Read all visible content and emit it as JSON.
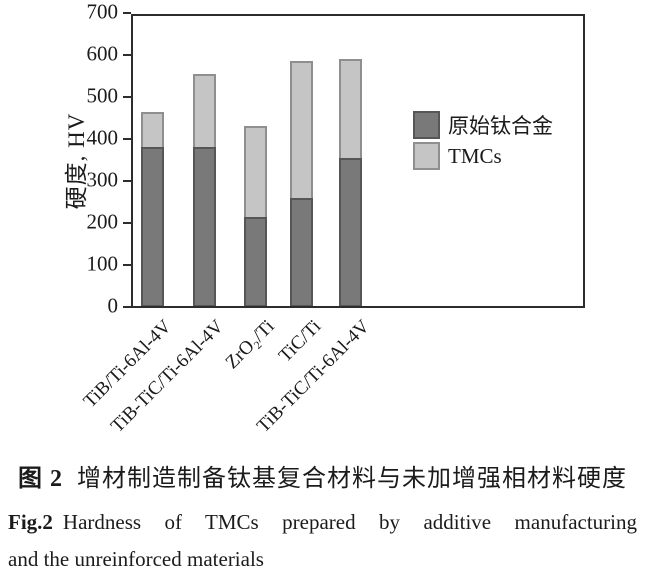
{
  "chart_data": {
    "type": "bar",
    "bar_mode": "overlay",
    "categories": [
      "TiB/Ti-6Al-4V",
      "TiB-TiC/Ti-6Al-4V",
      "ZrO₂/Ti",
      "TiC/Ti",
      "TiB-TiC/Ti-6Al-4V"
    ],
    "series": [
      {
        "name": "原始钛合金",
        "values": [
          380,
          380,
          215,
          260,
          355
        ],
        "color": "#797979"
      },
      {
        "name": "TMCs",
        "values": [
          465,
          555,
          430,
          585,
          590
        ],
        "color": "#c5c5c5"
      }
    ],
    "title": "",
    "xlabel": "",
    "ylabel": "硬度, HV",
    "ylim": [
      0,
      700
    ],
    "yticks": [
      0,
      100,
      200,
      300,
      400,
      500,
      600,
      700
    ],
    "grid": false,
    "legend_position": "inside-right",
    "x_tick_rotation_deg": 45
  },
  "caption": {
    "zh_label": "图 2",
    "zh_text": "增材制造制备钛基复合材料与未加增强相材料硬度",
    "en_label": "Fig.2",
    "en_line1": "Hardness of TMCs prepared by additive manufacturing",
    "en_line2": "and the unreinforced materials"
  },
  "colors": {
    "axis": "#2d2d2d",
    "text": "#1b1b1b",
    "matrix_fill": "#797979",
    "matrix_border": "#565656",
    "tmc_fill": "#c5c5c5",
    "tmc_border": "#8f8f8f",
    "background": "#ffffff"
  }
}
